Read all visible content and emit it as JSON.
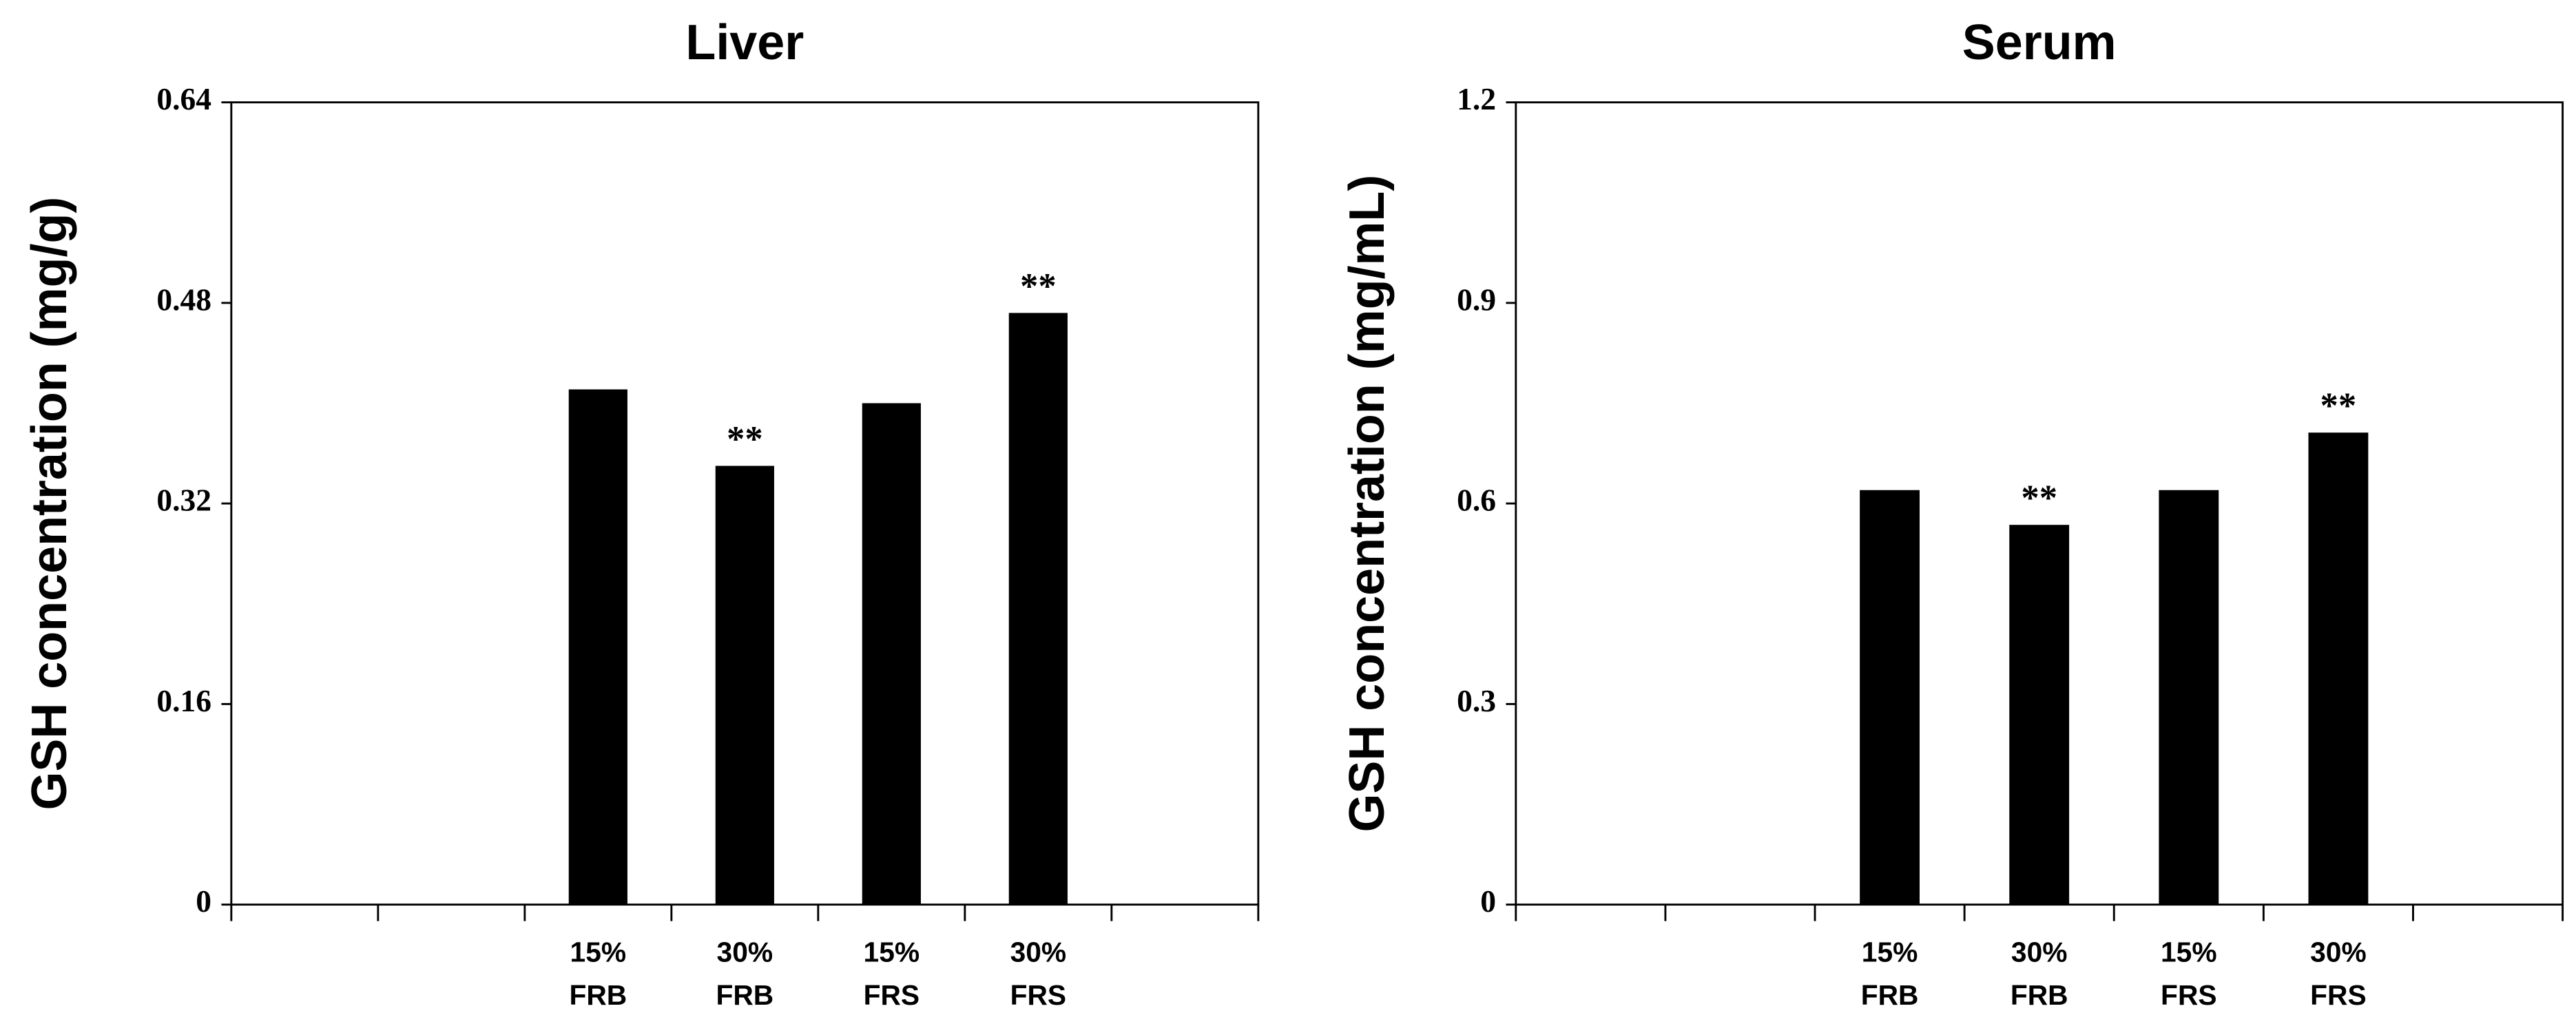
{
  "chart_data": [
    {
      "type": "bar",
      "title": "Liver",
      "y_label": "GSH concentration (mg/g)",
      "categories": [
        null,
        null,
        "15%\nFRB",
        "30%\nFRB",
        "15%\nFRS",
        "30%\nFRS",
        null
      ],
      "values": [
        null,
        null,
        0.411,
        0.35,
        0.4,
        0.472,
        null
      ],
      "annotations": [
        null,
        null,
        null,
        "**",
        null,
        "**",
        null
      ],
      "color": "#000000",
      "ylim": [
        0,
        0.64
      ],
      "yticks": [
        0,
        0.16,
        0.32,
        0.48,
        0.64
      ],
      "grid": false
    },
    {
      "type": "bar",
      "title": "Serum",
      "y_label": "GSH concentration (mg/mL)",
      "categories": [
        null,
        null,
        "15%\nFRB",
        "30%\nFRB",
        "15%\nFRS",
        "30%\nFRS",
        null
      ],
      "values": [
        null,
        null,
        0.62,
        0.568,
        0.62,
        0.706,
        null
      ],
      "annotations": [
        null,
        null,
        null,
        "**",
        null,
        "**",
        null
      ],
      "color": "#000000",
      "ylim": [
        0,
        1.2
      ],
      "yticks": [
        0,
        0.3,
        0.6,
        0.9,
        1.2
      ],
      "grid": false
    }
  ]
}
